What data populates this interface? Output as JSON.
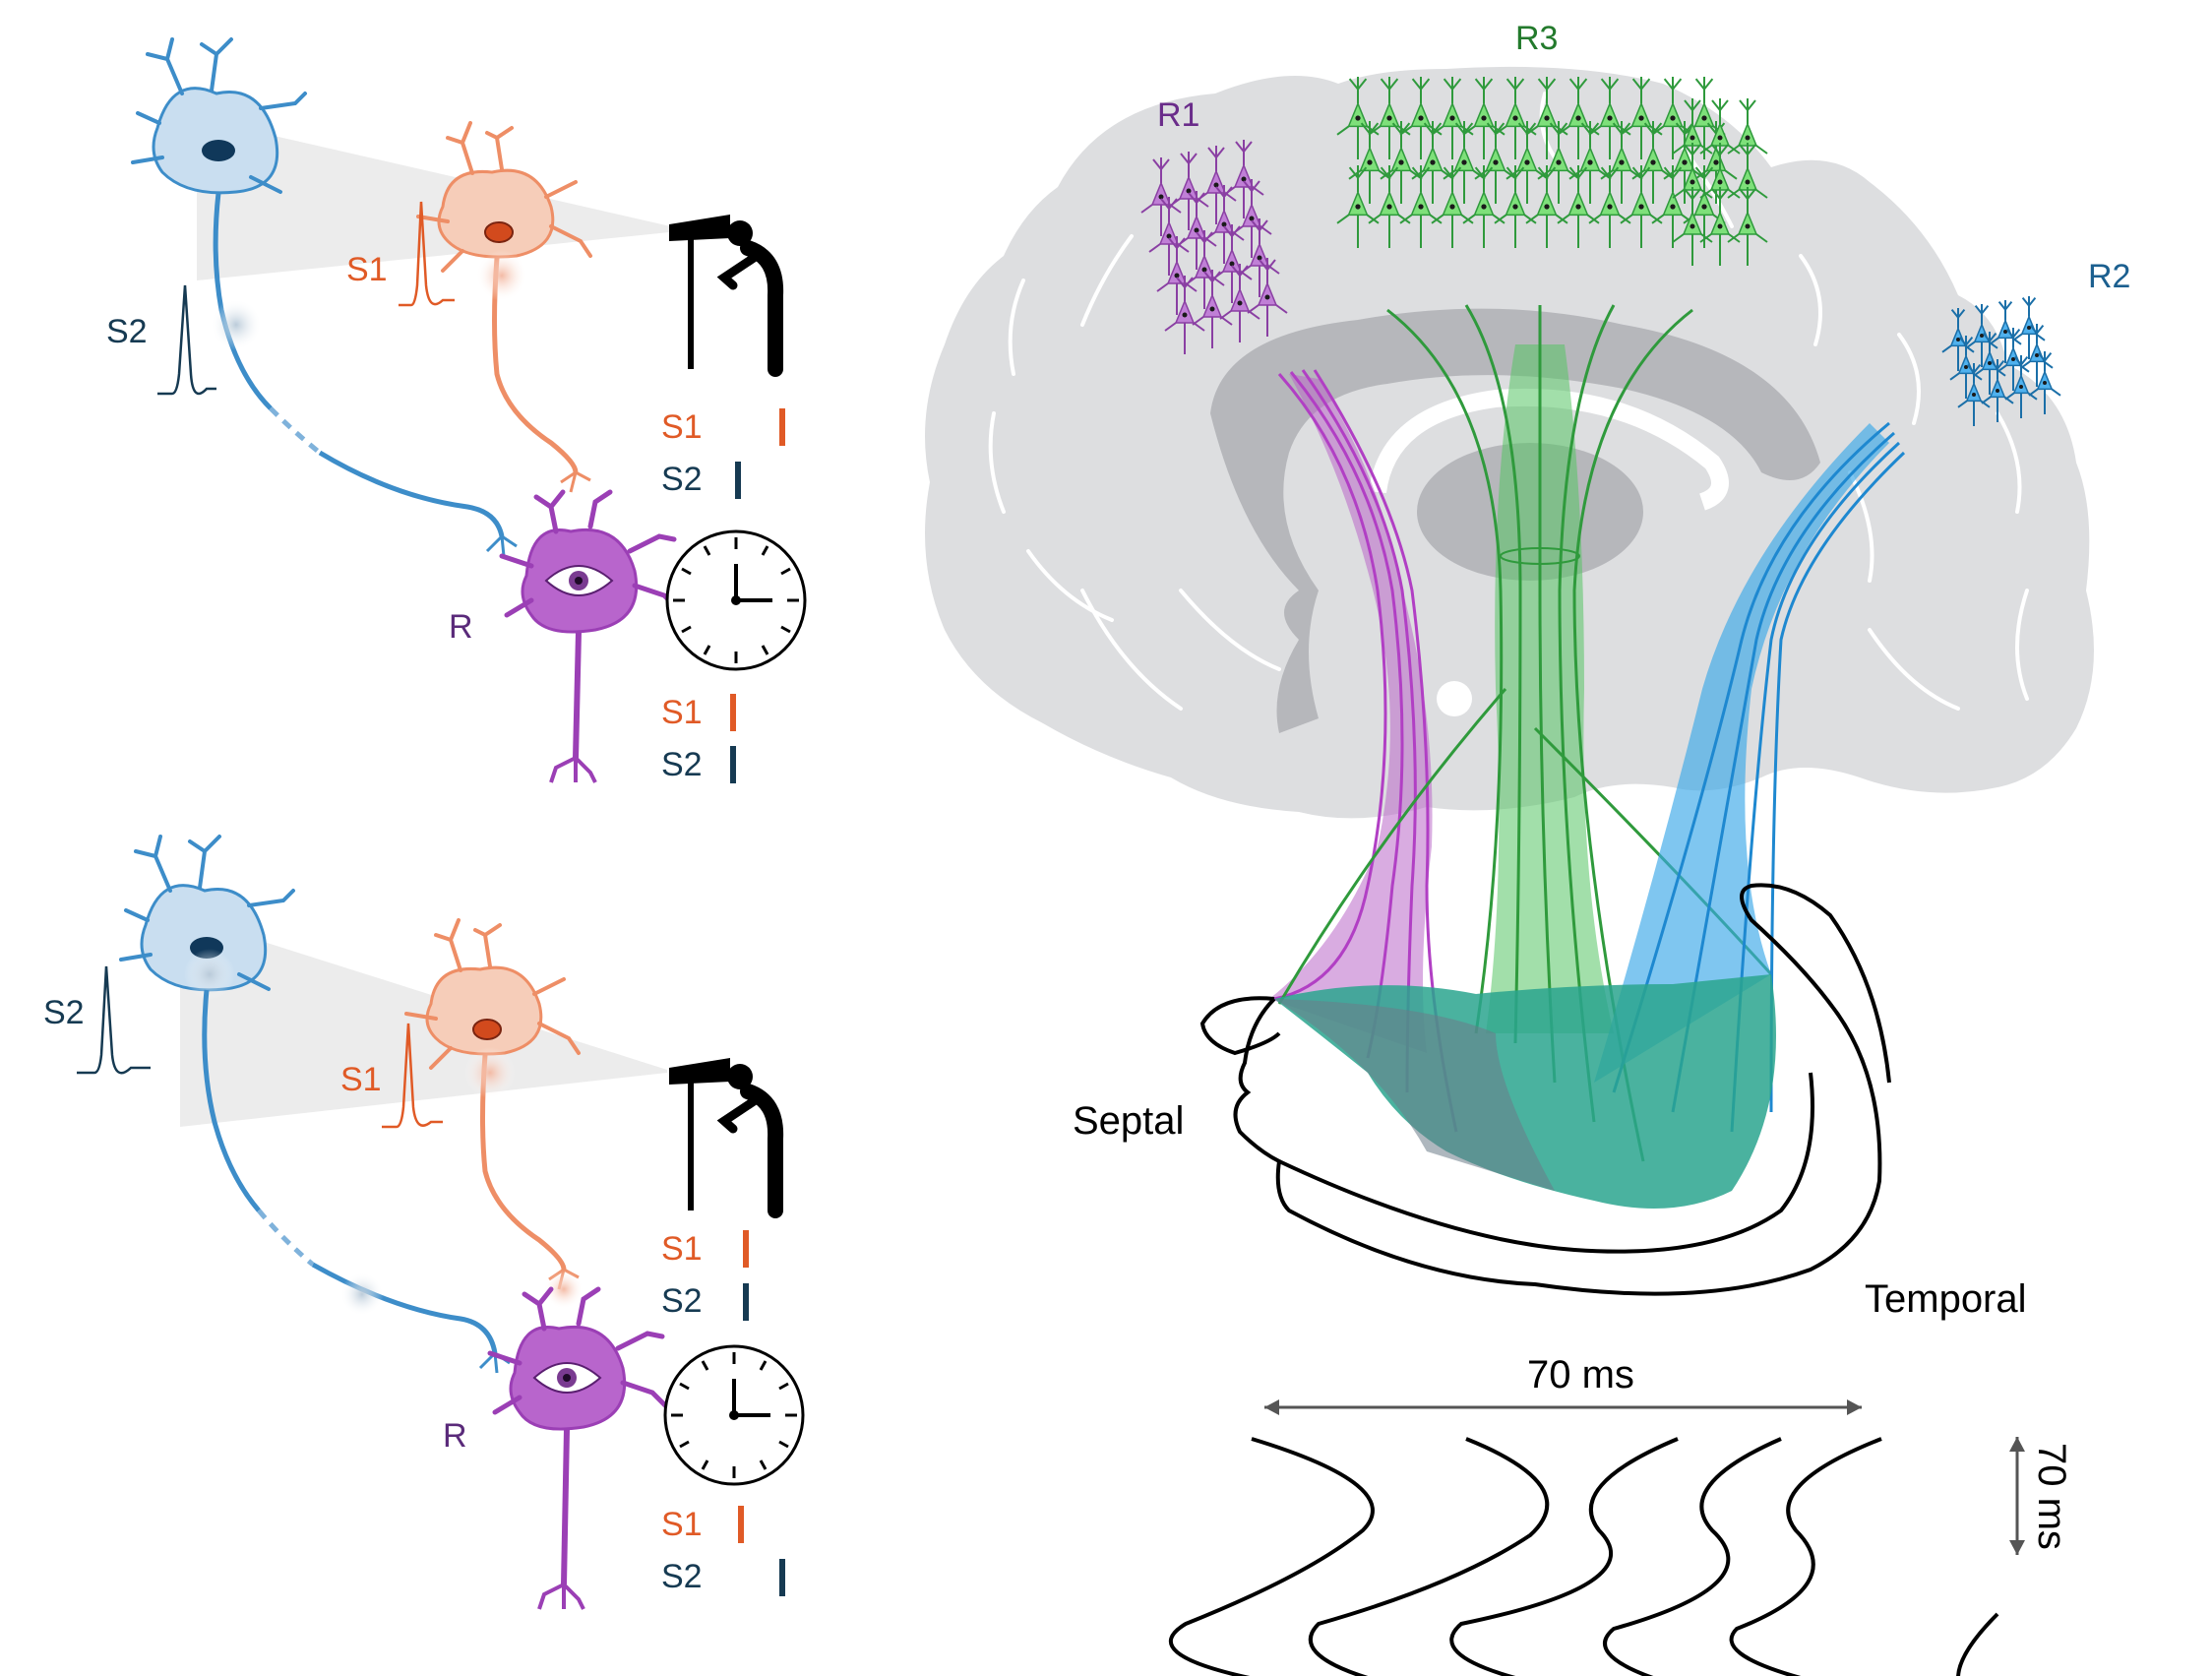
{
  "colors": {
    "s1": "#e05a26",
    "s2": "#163a52",
    "receiver": "#9b3fb5",
    "r1": "#8a3fa3",
    "r2": "#1b6fa8",
    "r3": "#2f9a3c",
    "brain": "#dddee0",
    "black": "#000000"
  },
  "icons": [
    "telescope-observer-icon",
    "clock-icon",
    "eye-icon"
  ],
  "panel_top": {
    "s2_label": "S2",
    "s1_label": "S1",
    "r_label": "R",
    "observer_spikes": [
      {
        "label": "S1",
        "tick_offset": 1
      },
      {
        "label": "S2",
        "tick_offset": 0
      }
    ],
    "receiver_spikes": [
      {
        "label": "S1",
        "tick_offset": 0
      },
      {
        "label": "S2",
        "tick_offset": 0
      }
    ]
  },
  "panel_bottom": {
    "s2_label": "S2",
    "s1_label": "S1",
    "r_label": "R",
    "observer_spikes": [
      {
        "label": "S1",
        "tick_offset": 0
      },
      {
        "label": "S2",
        "tick_offset": 0
      }
    ],
    "receiver_spikes": [
      {
        "label": "S1",
        "tick_offset": 0
      },
      {
        "label": "S2",
        "tick_offset": 1
      }
    ]
  },
  "brain": {
    "r1_label": "R1",
    "r2_label": "R2",
    "r3_label": "R3",
    "septal_label": "Septal",
    "temporal_label": "Temporal"
  },
  "waves": {
    "horizontal_label": "70 ms",
    "vertical_label": "70 ms"
  }
}
